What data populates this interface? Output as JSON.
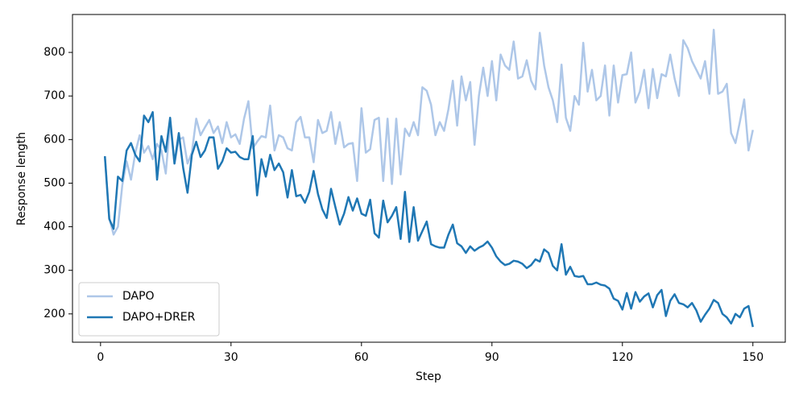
{
  "chart_data": {
    "type": "line",
    "xlabel": "Step",
    "ylabel": "Response length",
    "x": [
      1,
      2,
      3,
      4,
      5,
      6,
      7,
      8,
      9,
      10,
      11,
      12,
      13,
      14,
      15,
      16,
      17,
      18,
      19,
      20,
      21,
      22,
      23,
      24,
      25,
      26,
      27,
      28,
      29,
      30,
      31,
      32,
      33,
      34,
      35,
      36,
      37,
      38,
      39,
      40,
      41,
      42,
      43,
      44,
      45,
      46,
      47,
      48,
      49,
      50,
      51,
      52,
      53,
      54,
      55,
      56,
      57,
      58,
      59,
      60,
      61,
      62,
      63,
      64,
      65,
      66,
      67,
      68,
      69,
      70,
      71,
      72,
      73,
      74,
      75,
      76,
      77,
      78,
      79,
      80,
      81,
      82,
      83,
      84,
      85,
      86,
      87,
      88,
      89,
      90,
      91,
      92,
      93,
      94,
      95,
      96,
      97,
      98,
      99,
      100,
      101,
      102,
      103,
      104,
      105,
      106,
      107,
      108,
      109,
      110,
      111,
      112,
      113,
      114,
      115,
      116,
      117,
      118,
      119,
      120,
      121,
      122,
      123,
      124,
      125,
      126,
      127,
      128,
      129,
      130,
      131,
      132,
      133,
      134,
      135,
      136,
      137,
      138,
      139,
      140,
      141,
      142,
      143,
      144,
      145,
      146,
      147,
      148,
      149,
      150
    ],
    "series": [
      {
        "name": "DAPO",
        "color": "#aec7e8",
        "values": [
          560,
          420,
          382,
          400,
          495,
          550,
          508,
          570,
          610,
          570,
          585,
          555,
          590,
          575,
          522,
          640,
          545,
          600,
          605,
          545,
          570,
          648,
          610,
          628,
          645,
          615,
          630,
          592,
          640,
          605,
          612,
          590,
          648,
          688,
          580,
          595,
          608,
          605,
          678,
          575,
          610,
          605,
          580,
          575,
          640,
          652,
          605,
          605,
          548,
          645,
          615,
          620,
          663,
          590,
          640,
          582,
          590,
          592,
          505,
          672,
          570,
          578,
          645,
          650,
          505,
          648,
          498,
          648,
          520,
          625,
          608,
          640,
          610,
          720,
          712,
          680,
          610,
          640,
          620,
          670,
          735,
          632,
          745,
          690,
          732,
          588,
          700,
          765,
          700,
          780,
          690,
          795,
          770,
          760,
          825,
          740,
          745,
          782,
          735,
          715,
          845,
          770,
          720,
          690,
          640,
          772,
          650,
          620,
          700,
          680,
          822,
          710,
          760,
          690,
          700,
          770,
          655,
          770,
          685,
          748,
          750,
          800,
          685,
          710,
          760,
          672,
          762,
          695,
          750,
          745,
          795,
          740,
          700,
          828,
          810,
          780,
          760,
          740,
          780,
          705,
          852,
          705,
          710,
          728,
          615,
          592,
          640,
          692,
          575,
          622
        ]
      },
      {
        "name": "DAPO+DRER",
        "color": "#1f77b4",
        "values": [
          562,
          418,
          395,
          515,
          505,
          575,
          592,
          565,
          550,
          655,
          640,
          663,
          508,
          608,
          572,
          650,
          545,
          615,
          535,
          478,
          565,
          595,
          560,
          575,
          605,
          605,
          533,
          550,
          580,
          570,
          572,
          560,
          555,
          555,
          608,
          472,
          555,
          515,
          565,
          530,
          545,
          525,
          467,
          530,
          470,
          473,
          455,
          480,
          528,
          475,
          440,
          420,
          487,
          445,
          405,
          430,
          468,
          437,
          465,
          430,
          425,
          462,
          385,
          375,
          460,
          410,
          425,
          445,
          372,
          480,
          365,
          445,
          368,
          390,
          412,
          360,
          355,
          352,
          352,
          382,
          405,
          362,
          355,
          340,
          355,
          345,
          352,
          357,
          366,
          352,
          332,
          320,
          312,
          315,
          322,
          320,
          315,
          305,
          312,
          325,
          320,
          348,
          340,
          310,
          300,
          360,
          290,
          308,
          287,
          285,
          287,
          268,
          268,
          272,
          267,
          265,
          258,
          235,
          230,
          210,
          248,
          212,
          250,
          228,
          240,
          247,
          215,
          243,
          255,
          195,
          230,
          245,
          225,
          222,
          215,
          225,
          208,
          182,
          198,
          212,
          232,
          225,
          200,
          192,
          178,
          200,
          192,
          212,
          218,
          170
        ]
      }
    ],
    "xlim": [
      -6.45,
      157.45
    ],
    "ylim": [
      135,
      887
    ],
    "xticks": [
      0,
      30,
      60,
      90,
      120,
      150
    ],
    "yticks": [
      200,
      300,
      400,
      500,
      600,
      700,
      800
    ],
    "legend": "lower left",
    "grid": false
  }
}
